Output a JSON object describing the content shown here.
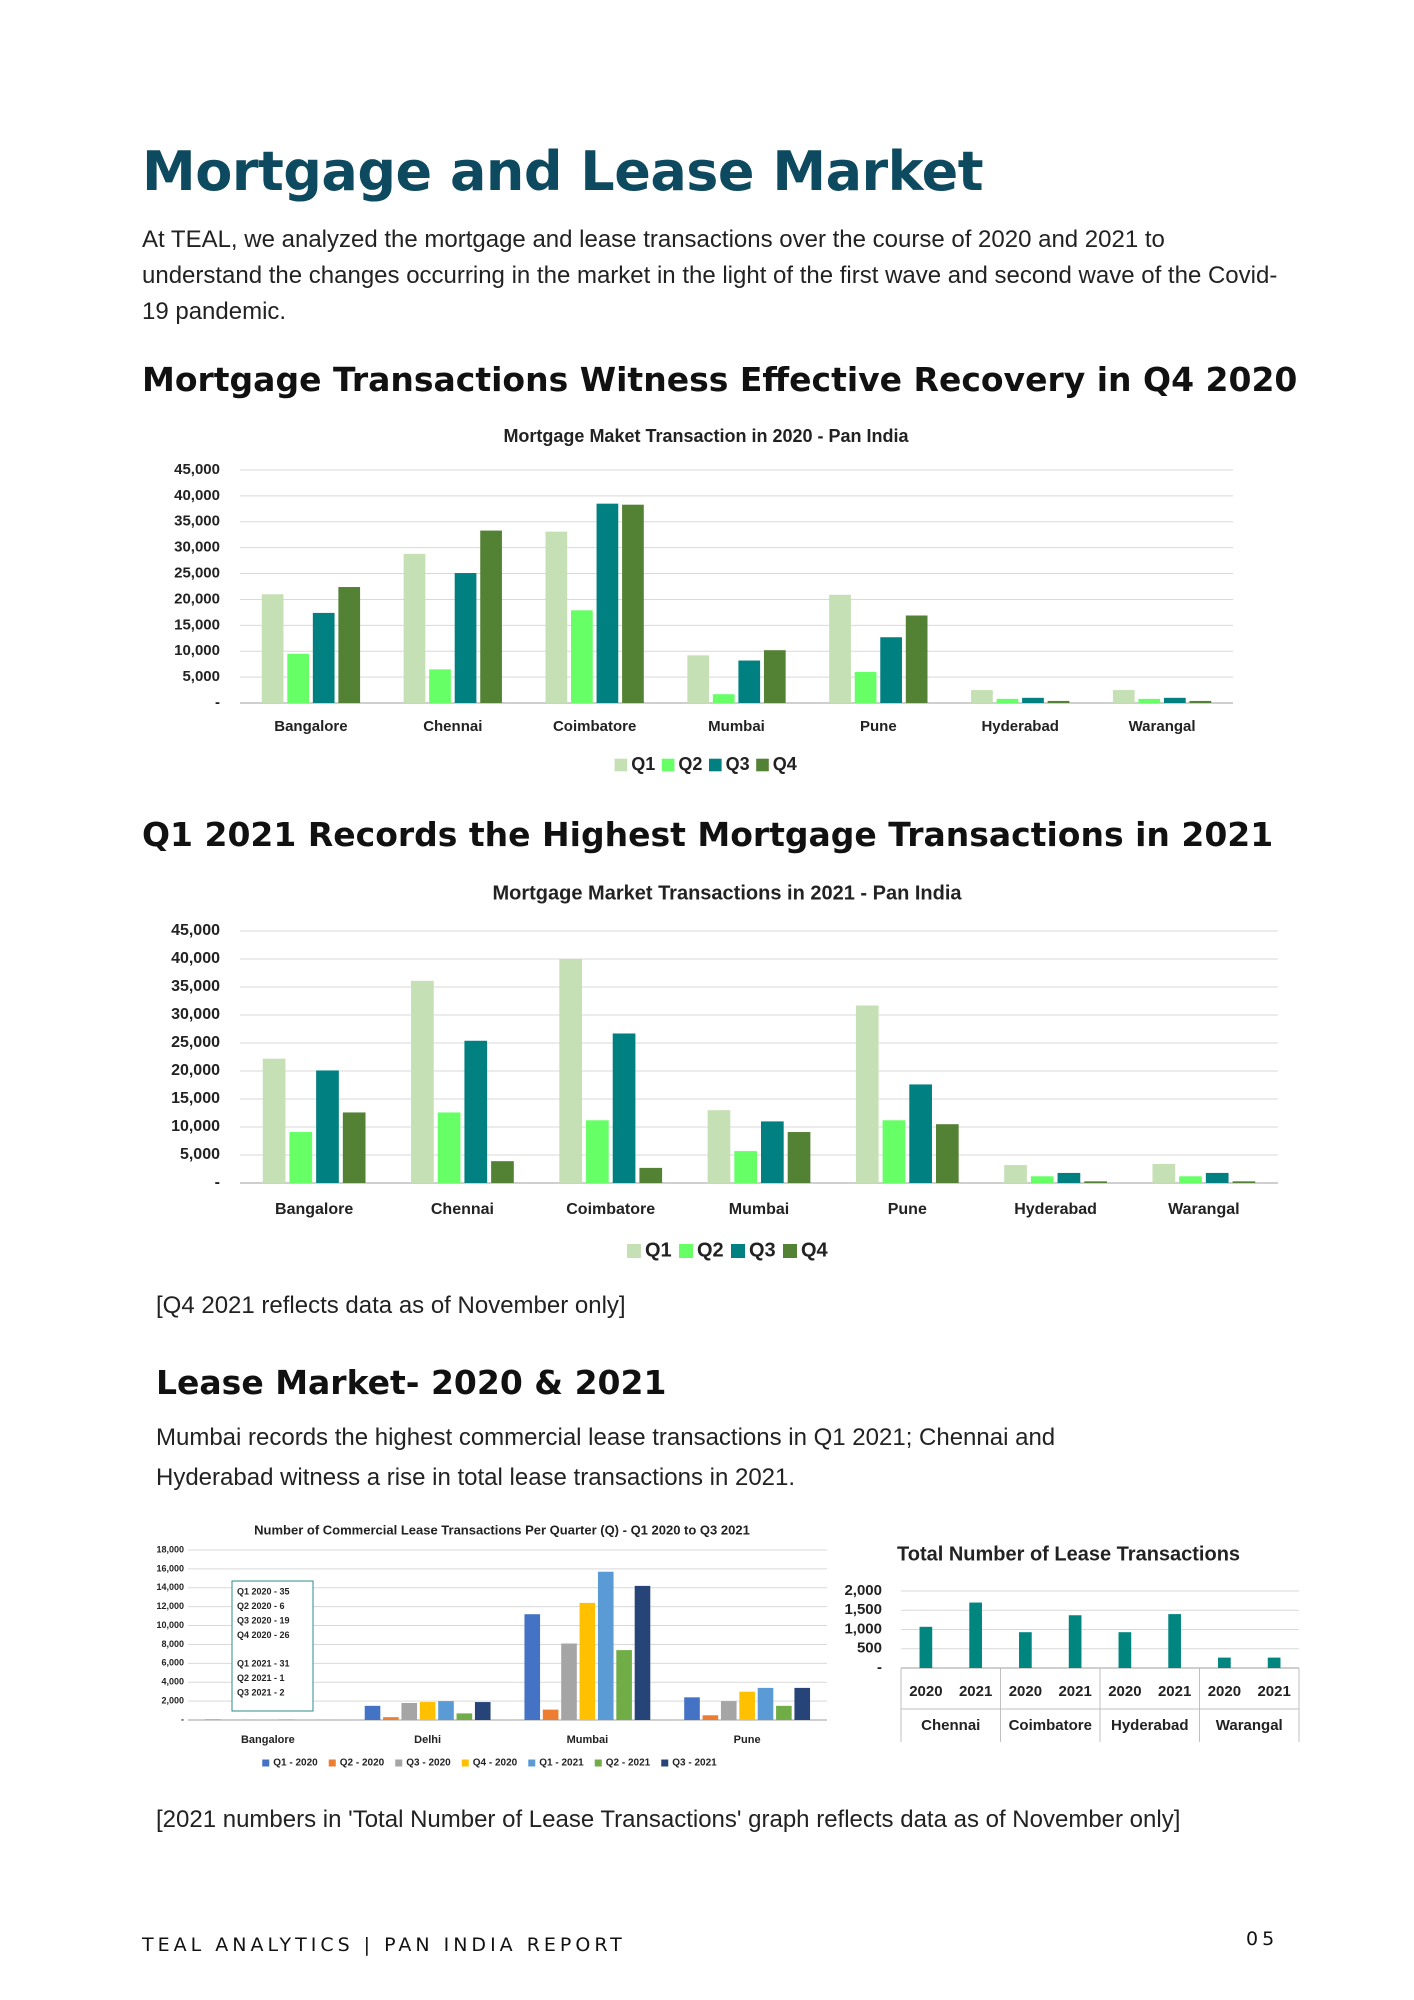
{
  "title": "Mortgage and Lease Market",
  "intro": "At TEAL, we analyzed the mortgage and lease transactions over the course of 2020 and 2021 to understand the changes occurring in the market in the light of the first wave and second wave of the Covid-19 pandemic.",
  "headings": [
    "Mortgage Transactions Witness Effective Recovery in Q4 2020",
    "Q1 2021 Records the Highest Mortgage Transactions in 2021",
    "Lease Market- 2020 & 2021"
  ],
  "note_2021": "[Q4 2021 reflects data as of November only]",
  "lease_text": "Mumbai records the highest commercial lease transactions in Q1 2021; Chennai and Hyderabad witness a rise in total lease transactions in 2021.",
  "note_lease": "[2021 numbers in 'Total Number of Lease Transactions' graph reflects data as of November only]",
  "footer": {
    "report": "TEAL ANALYTICS | PAN INDIA REPORT",
    "page": "05"
  },
  "chart_data": [
    {
      "type": "bar",
      "title": "Mortgage Maket Transaction in 2020 - Pan India",
      "categories": [
        "Bangalore",
        "Chennai",
        "Coimbatore",
        "Mumbai",
        "Pune",
        "Hyderabad",
        "Warangal"
      ],
      "series": [
        {
          "name": "Q1",
          "color": "#c5e0b4",
          "values": [
            21000,
            28800,
            33100,
            9200,
            20900,
            2500,
            2500
          ]
        },
        {
          "name": "Q2",
          "color": "#66ff66",
          "values": [
            9500,
            6500,
            17900,
            1700,
            6000,
            800,
            800
          ]
        },
        {
          "name": "Q3",
          "color": "#008080",
          "values": [
            17400,
            25100,
            38500,
            8200,
            12700,
            1000,
            1000
          ]
        },
        {
          "name": "Q4",
          "color": "#548235",
          "values": [
            22400,
            33300,
            38300,
            10200,
            16900,
            400,
            400
          ]
        }
      ],
      "ylim": [
        0,
        45000
      ],
      "yticks": [
        {
          "value": 0,
          "label": "-"
        },
        {
          "value": 5000,
          "label": "5,000"
        },
        {
          "value": 10000,
          "label": "10,000"
        },
        {
          "value": 15000,
          "label": "15,000"
        },
        {
          "value": 20000,
          "label": "20,000"
        },
        {
          "value": 25000,
          "label": "25,000"
        },
        {
          "value": 30000,
          "label": "30,000"
        },
        {
          "value": 35000,
          "label": "35,000"
        },
        {
          "value": 40000,
          "label": "40,000"
        },
        {
          "value": 45000,
          "label": "45,000"
        }
      ],
      "grid": true,
      "legend": "bottom"
    },
    {
      "type": "bar",
      "title": "Mortgage Market Transactions in 2021 - Pan India",
      "categories": [
        "Bangalore",
        "Chennai",
        "Coimbatore",
        "Mumbai",
        "Pune",
        "Hyderabad",
        "Warangal"
      ],
      "series": [
        {
          "name": "Q1",
          "color": "#c5e0b4",
          "values": [
            22200,
            36100,
            40000,
            13000,
            31700,
            3200,
            3400
          ]
        },
        {
          "name": "Q2",
          "color": "#66ff66",
          "values": [
            9100,
            12600,
            11200,
            5700,
            11200,
            1200,
            1200
          ]
        },
        {
          "name": "Q3",
          "color": "#008080",
          "values": [
            20100,
            25400,
            26700,
            11000,
            17600,
            1800,
            1800
          ]
        },
        {
          "name": "Q4",
          "color": "#548235",
          "values": [
            12600,
            3900,
            2700,
            9100,
            10500,
            300,
            300
          ]
        }
      ],
      "ylim": [
        0,
        45000
      ],
      "yticks": [
        {
          "value": 0,
          "label": "-"
        },
        {
          "value": 5000,
          "label": "5,000"
        },
        {
          "value": 10000,
          "label": "10,000"
        },
        {
          "value": 15000,
          "label": "15,000"
        },
        {
          "value": 20000,
          "label": "20,000"
        },
        {
          "value": 25000,
          "label": "25,000"
        },
        {
          "value": 30000,
          "label": "30,000"
        },
        {
          "value": 35000,
          "label": "35,000"
        },
        {
          "value": 40000,
          "label": "40,000"
        },
        {
          "value": 45000,
          "label": "45,000"
        }
      ],
      "grid": true,
      "legend": "bottom"
    },
    {
      "type": "bar",
      "title": "Number of Commercial Lease Transactions Per Quarter (Q) - Q1 2020 to Q3 2021",
      "categories": [
        "Bangalore",
        "Delhi",
        "Mumbai",
        "Pune"
      ],
      "series": [
        {
          "name": "Q1 - 2020",
          "color": "#4472c4",
          "values": [
            35,
            1500,
            11200,
            2400
          ]
        },
        {
          "name": "Q2 - 2020",
          "color": "#ed7d31",
          "values": [
            6,
            300,
            1100,
            500
          ]
        },
        {
          "name": "Q3 - 2020",
          "color": "#a5a5a5",
          "values": [
            19,
            1800,
            8100,
            2000
          ]
        },
        {
          "name": "Q4 - 2020",
          "color": "#ffc000",
          "values": [
            26,
            1900,
            12400,
            3000
          ]
        },
        {
          "name": "Q1 - 2021",
          "color": "#5b9bd5",
          "values": [
            31,
            2000,
            15700,
            3400
          ]
        },
        {
          "name": "Q2 - 2021",
          "color": "#70ad47",
          "values": [
            1,
            700,
            7400,
            1500
          ]
        },
        {
          "name": "Q3 - 2021",
          "color": "#264478",
          "values": [
            2,
            1900,
            14200,
            3400
          ]
        }
      ],
      "ylim": [
        0,
        18000
      ],
      "yticks": [
        {
          "value": 0,
          "label": "-"
        },
        {
          "value": 2000,
          "label": "2,000"
        },
        {
          "value": 4000,
          "label": "4,000"
        },
        {
          "value": 6000,
          "label": "6,000"
        },
        {
          "value": 8000,
          "label": "8,000"
        },
        {
          "value": 10000,
          "label": "10,000"
        },
        {
          "value": 12000,
          "label": "12,000"
        },
        {
          "value": 14000,
          "label": "14,000"
        },
        {
          "value": 16000,
          "label": "16,000"
        },
        {
          "value": 18000,
          "label": "18,000"
        }
      ],
      "grid": true,
      "legend": "bottom",
      "annotation": [
        "Q1 2020 - 35",
        "Q2 2020 - 6",
        "Q3 2020 - 19",
        "Q4 2020 - 26",
        "Q1 2021 - 31",
        "Q2 2021 - 1",
        "Q3 2021 - 2"
      ]
    },
    {
      "type": "bar",
      "title": "Total Number of Lease Transactions",
      "categories": [
        "2020",
        "2021",
        "2020",
        "2021",
        "2020",
        "2021",
        "2020",
        "2021"
      ],
      "groups": [
        "Chennai",
        "Coimbatore",
        "Hyderabad",
        "Warangal"
      ],
      "values": [
        1070,
        1700,
        930,
        1370,
        930,
        1400,
        270,
        270
      ],
      "color": "#00857f",
      "ylim": [
        0,
        2000
      ],
      "yticks": [
        {
          "value": 0,
          "label": "-"
        },
        500,
        {
          "value": 1000,
          "label": "1,000"
        },
        {
          "value": 1500,
          "label": "1,500"
        },
        {
          "value": 2000,
          "label": "2,000"
        }
      ],
      "grid": true
    }
  ]
}
